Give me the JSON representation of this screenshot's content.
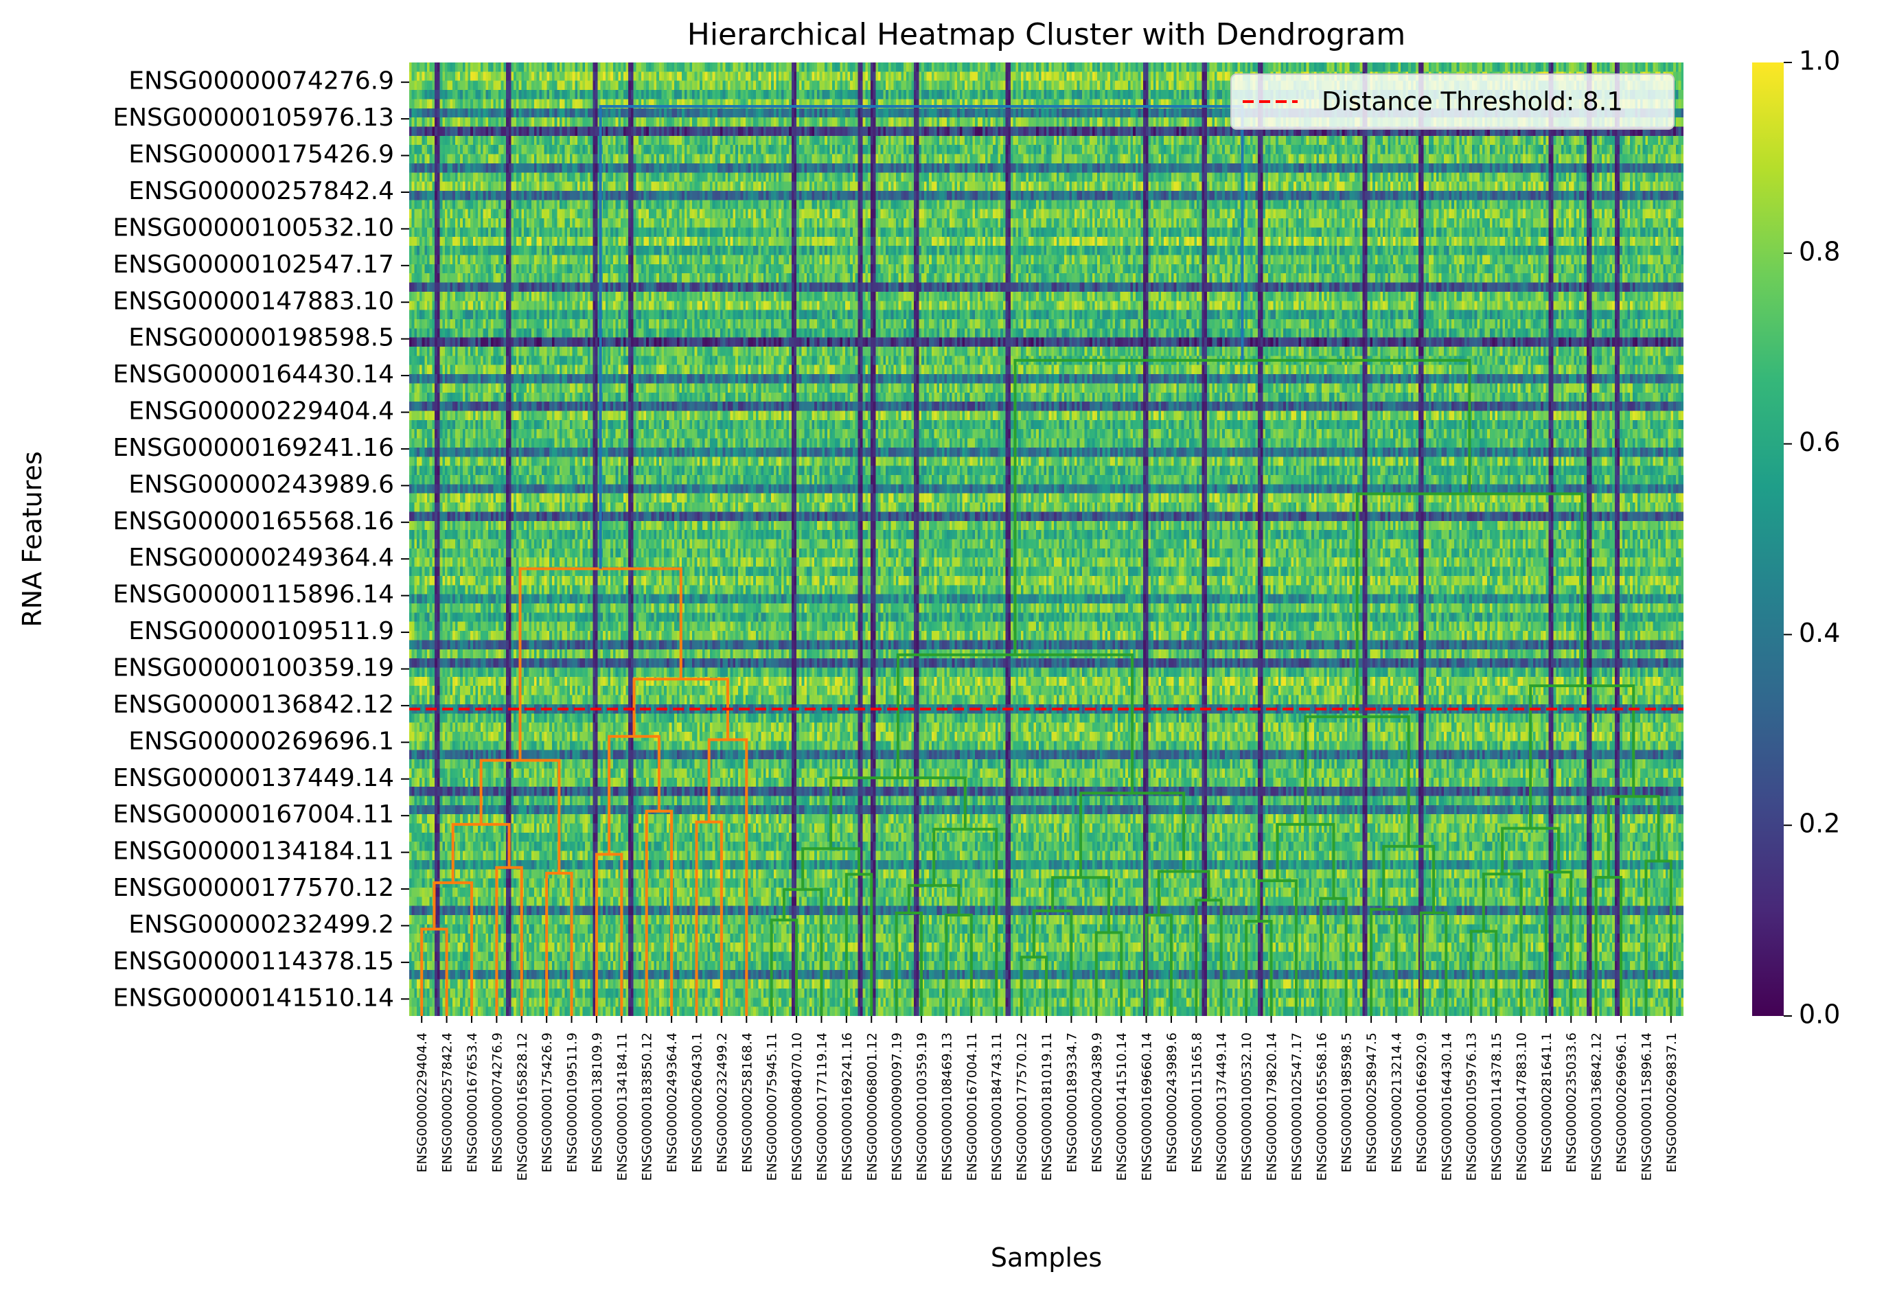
{
  "chart_data": {
    "type": "heatmap",
    "title": "Hierarchical Heatmap Cluster with Dendrogram",
    "xlabel": "Samples",
    "ylabel": "RNA Features",
    "colormap": "viridis",
    "colors": {
      "viridis": [
        "#440154",
        "#482878",
        "#3e4989",
        "#31688e",
        "#26828e",
        "#1f9e89",
        "#35b779",
        "#6ece58",
        "#b5de2b",
        "#fde725"
      ],
      "dendrogram_upper": "#1f77b4",
      "dendrogram_cluster1": "#ff7f0e",
      "dendrogram_cluster2": "#2ca02c",
      "threshold": "#ff0000"
    },
    "colorbar": {
      "range": [
        0.0,
        1.0
      ],
      "ticks": [
        "0.0",
        "0.2",
        "0.4",
        "0.6",
        "0.8",
        "1.0"
      ]
    },
    "row_labels": [
      "ENSG00000074276.9",
      "ENSG00000105976.13",
      "ENSG00000175426.9",
      "ENSG00000257842.4",
      "ENSG00000100532.10",
      "ENSG00000102547.17",
      "ENSG00000147883.10",
      "ENSG00000198598.5",
      "ENSG00000164430.14",
      "ENSG00000229404.4",
      "ENSG00000169241.16",
      "ENSG00000243989.6",
      "ENSG00000165568.16",
      "ENSG00000249364.4",
      "ENSG00000115896.14",
      "ENSG00000109511.9",
      "ENSG00000100359.19",
      "ENSG00000136842.12",
      "ENSG00000269696.1",
      "ENSG00000137449.14",
      "ENSG00000167004.11",
      "ENSG00000134184.11",
      "ENSG00000177570.12",
      "ENSG00000232499.2",
      "ENSG00000114378.15",
      "ENSG00000141510.14"
    ],
    "col_labels": [
      "ENSG00000229404.4",
      "ENSG00000257842.4",
      "ENSG00000167653.4",
      "ENSG00000074276.9",
      "ENSG00000165828.12",
      "ENSG00000175426.9",
      "ENSG00000109511.9",
      "ENSG00000138109.9",
      "ENSG00000134184.11",
      "ENSG00000183850.12",
      "ENSG00000249364.4",
      "ENSG00000260430.1",
      "ENSG00000232499.2",
      "ENSG00000258168.4",
      "ENSG00000075945.11",
      "ENSG00000084070.10",
      "ENSG00000177119.14",
      "ENSG00000169241.16",
      "ENSG00000068001.12",
      "ENSG00000090097.19",
      "ENSG00000100359.19",
      "ENSG00000108469.13",
      "ENSG00000167004.11",
      "ENSG00000184743.11",
      "ENSG00000177570.12",
      "ENSG00000181019.11",
      "ENSG00000189334.7",
      "ENSG00000204389.9",
      "ENSG00000141510.14",
      "ENSG00000169660.14",
      "ENSG00000243989.6",
      "ENSG00000115165.8",
      "ENSG00000137449.14",
      "ENSG00000100532.10",
      "ENSG00000179820.14",
      "ENSG00000102547.17",
      "ENSG00000165568.16",
      "ENSG00000198598.5",
      "ENSG00000258947.5",
      "ENSG00000213214.4",
      "ENSG00000166920.9",
      "ENSG00000164430.14",
      "ENSG00000105976.13",
      "ENSG00000114378.15",
      "ENSG00000147883.10",
      "ENSG00000281641.1",
      "ENSG00000235033.6",
      "ENSG00000136842.12",
      "ENSG00000269696.1",
      "ENSG00000115896.14",
      "ENSG00000269837.1"
    ],
    "row_mean_levels": [
      0.72,
      0.82,
      0.78,
      0.62,
      0.8,
      0.4,
      0.78,
      0.18,
      0.74,
      0.7,
      0.76,
      0.38,
      0.74,
      0.8,
      0.36,
      0.7,
      0.78,
      0.76,
      0.66,
      0.82,
      0.62,
      0.76,
      0.7,
      0.74,
      0.28,
      0.76,
      0.8,
      0.6,
      0.72,
      0.66,
      0.18,
      0.74,
      0.7,
      0.78,
      0.4,
      0.76,
      0.7,
      0.3,
      0.8,
      0.66,
      0.72,
      0.7,
      0.4,
      0.78,
      0.66,
      0.7,
      0.4,
      0.8,
      0.76,
      0.28,
      0.76,
      0.66,
      0.74,
      0.7,
      0.78,
      0.68,
      0.8,
      0.74,
      0.5,
      0.76,
      0.62,
      0.74,
      0.78,
      0.34,
      0.76,
      0.3,
      0.68,
      0.82,
      0.78,
      0.76,
      0.4,
      0.7,
      0.78,
      0.8,
      0.72,
      0.36,
      0.7,
      0.76,
      0.74,
      0.28,
      0.7,
      0.4,
      0.78,
      0.76,
      0.72,
      0.68,
      0.76,
      0.52,
      0.78,
      0.7,
      0.76,
      0.74,
      0.36,
      0.76,
      0.7,
      0.74,
      0.78,
      0.7,
      0.72,
      0.4,
      0.8,
      0.7,
      0.76,
      0.72
    ],
    "column_darkness": {
      "dark_sample_columns": [
        10,
        38,
        72,
        86,
        150,
        176,
        181,
        198,
        234,
        288,
        311,
        333,
        374,
        396,
        447,
        462,
        473
      ],
      "total_sample_columns": 500
    },
    "dendrogram": {
      "distance_threshold": 8.1,
      "legend_label": "Distance Threshold: 8.1",
      "structure": {
        "root_height": 24.0,
        "cluster_1_merge_height": 11.8,
        "cluster_2_merge_height": 17.3,
        "cluster_1_leaf_range": [
          0,
          13
        ],
        "cluster_2_leaf_range": [
          14,
          50
        ]
      }
    }
  }
}
